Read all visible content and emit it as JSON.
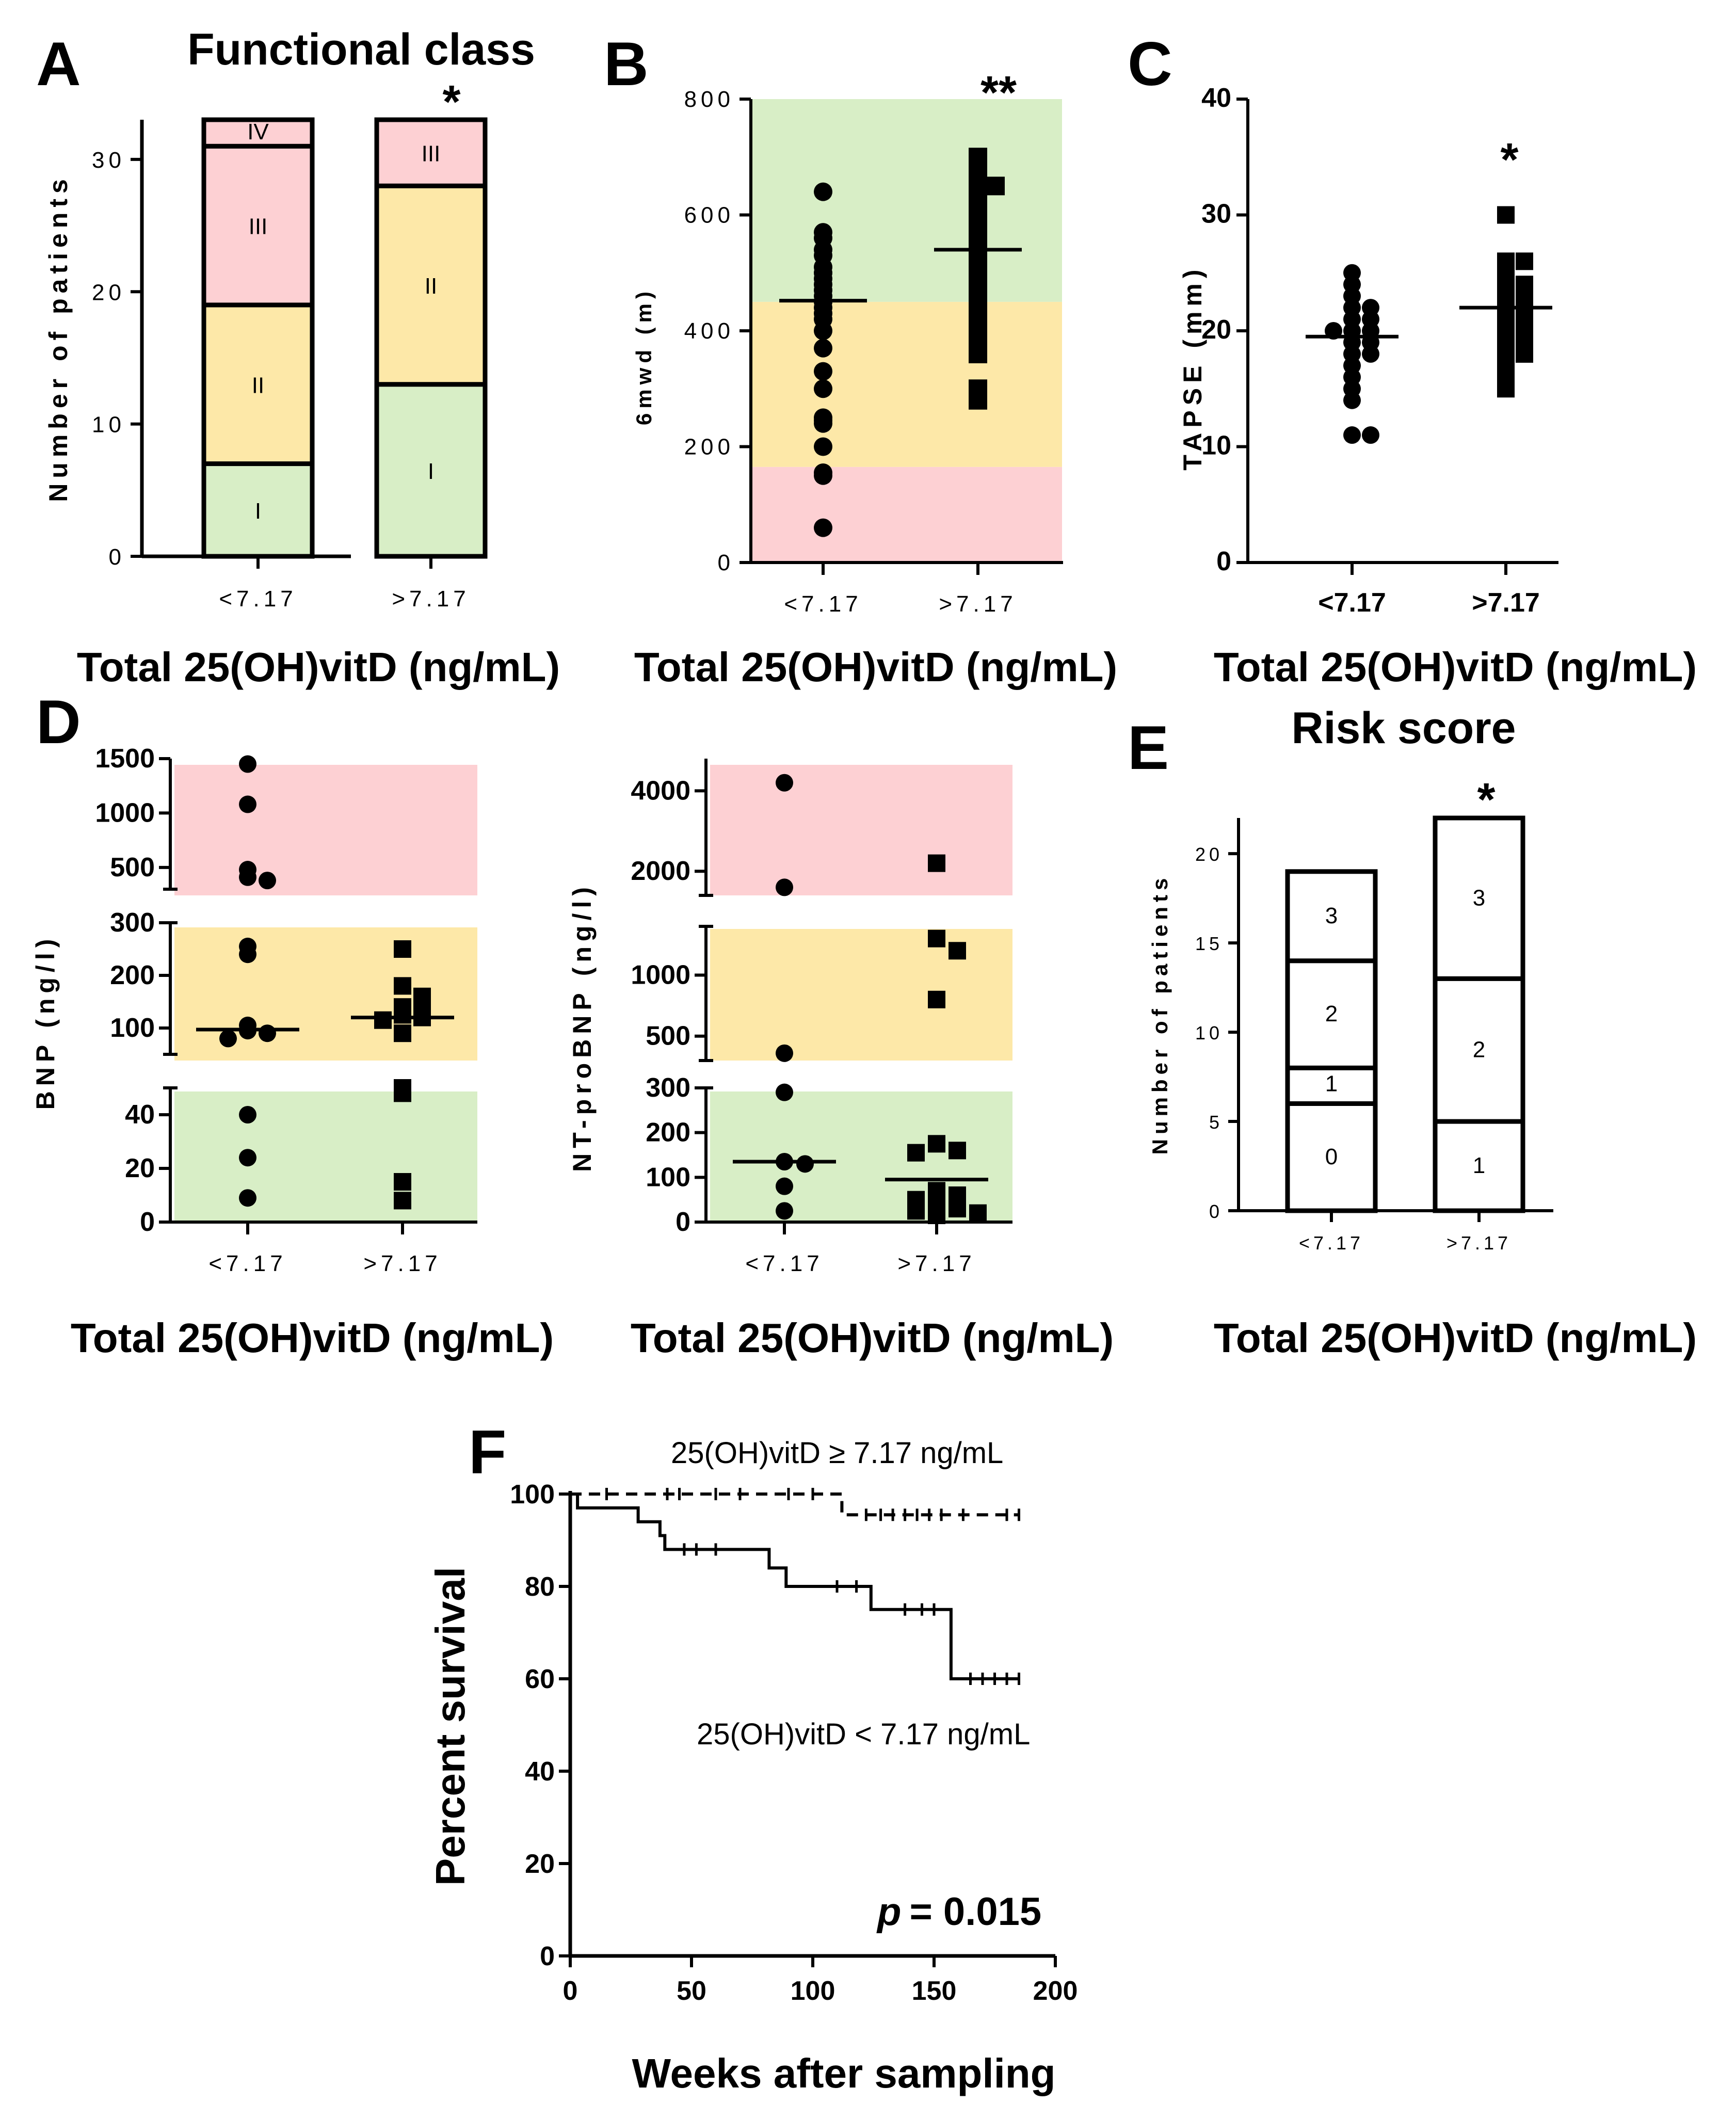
{
  "colors": {
    "red": "#fdd0d3",
    "yellow": "#fde8a8",
    "green": "#d8eec6",
    "ink": "#000000",
    "white": "#ffffff"
  },
  "captions": {
    "x_group": "Total 25(OH)vitD (ng/mL)",
    "weeks": "Weeks after sampling"
  },
  "chart_data": [
    {
      "id": "A",
      "panel_label": "A",
      "type": "stacked-bar",
      "title": "Functional class",
      "ylabel": "Number of patients",
      "ylim": [
        0,
        33
      ],
      "yticks": [
        0,
        10,
        20,
        30
      ],
      "categories": [
        "<7.17",
        ">7.17"
      ],
      "bars": [
        {
          "segments": [
            {
              "label": "I",
              "value": 7
            },
            {
              "label": "II",
              "value": 12
            },
            {
              "label": "III",
              "value": 12
            },
            {
              "label": "IV",
              "value": 2
            }
          ]
        },
        {
          "segments": [
            {
              "label": "I",
              "value": 13
            },
            {
              "label": "II",
              "value": 15
            },
            {
              "label": "III",
              "value": 5
            }
          ]
        }
      ],
      "significance": "*"
    },
    {
      "id": "B",
      "panel_label": "B",
      "type": "scatter",
      "ylabel": "6mwd (m)",
      "ylim": [
        0,
        800
      ],
      "yticks": [
        0,
        200,
        400,
        600,
        800
      ],
      "categories": [
        "<7.17",
        ">7.17"
      ],
      "bands": [
        {
          "from": 0,
          "to": 165,
          "color": "red"
        },
        {
          "from": 165,
          "to": 450,
          "color": "yellow"
        },
        {
          "from": 450,
          "to": 800,
          "color": "green"
        }
      ],
      "groups": [
        {
          "marker": "circle",
          "mean": 452,
          "values": [
            640,
            570,
            560,
            540,
            530,
            510,
            500,
            490,
            480,
            470,
            460,
            450,
            440,
            430,
            420,
            400,
            370,
            330,
            300,
            250,
            245,
            240,
            200,
            155,
            150,
            60
          ]
        },
        {
          "marker": "square",
          "mean": 540,
          "values": [
            700,
            680,
            650,
            650,
            630,
            600,
            590,
            580,
            560,
            550,
            540,
            530,
            510,
            490,
            480,
            460,
            450,
            430,
            420,
            390,
            370,
            360,
            300,
            290,
            280
          ]
        }
      ],
      "significance": "**"
    },
    {
      "id": "C",
      "panel_label": "C",
      "type": "scatter",
      "ylabel": "TAPSE (mm)",
      "ylim": [
        0,
        40
      ],
      "yticks": [
        0,
        10,
        20,
        30,
        40
      ],
      "categories": [
        "<7.17",
        ">7.17"
      ],
      "groups": [
        {
          "marker": "circle",
          "mean": 19.5,
          "values": [
            25,
            24,
            23,
            22,
            22,
            21,
            21,
            20,
            20,
            20,
            19,
            19,
            18,
            18,
            17,
            16,
            15,
            14,
            11,
            11
          ]
        },
        {
          "marker": "square",
          "mean": 22,
          "values": [
            30,
            26,
            26,
            25,
            24,
            24,
            23,
            23,
            22,
            22,
            21,
            21,
            20,
            20,
            19,
            19,
            18,
            18,
            17,
            16,
            15
          ]
        }
      ],
      "significance": "*"
    },
    {
      "id": "D1",
      "panel_label": "D",
      "type": "broken-axis-scatter",
      "ylabel": "BNP (ng/l)",
      "categories": [
        "<7.17",
        ">7.17"
      ],
      "segments": [
        {
          "range": [
            0,
            50
          ],
          "ticks": [
            0,
            20,
            40
          ],
          "band": "green"
        },
        {
          "range": [
            50,
            300
          ],
          "ticks": [
            100,
            200,
            300
          ],
          "band": "yellow"
        },
        {
          "range": [
            300,
            1500
          ],
          "ticks": [
            500,
            1000,
            1500
          ],
          "band": "red"
        }
      ],
      "groups": [
        {
          "marker": "circle",
          "mean": 97,
          "values": [
            1450,
            1080,
            480,
            410,
            380,
            255,
            240,
            105,
            95,
            90,
            80,
            40,
            24,
            9
          ]
        },
        {
          "marker": "square",
          "mean": 120,
          "values": [
            250,
            180,
            160,
            140,
            130,
            125,
            120,
            115,
            90,
            50,
            48,
            15,
            8
          ]
        }
      ]
    },
    {
      "id": "D2",
      "panel_label": "",
      "type": "broken-axis-scatter",
      "ylabel": "NT-proBNP (ng/l)",
      "categories": [
        "<7.17",
        ">7.17"
      ],
      "segments": [
        {
          "range": [
            0,
            300
          ],
          "ticks": [
            0,
            100,
            200,
            300
          ],
          "band": "green"
        },
        {
          "range": [
            300,
            1400
          ],
          "ticks": [
            500,
            1000
          ],
          "band": "yellow"
        },
        {
          "range": [
            1400,
            4800
          ],
          "ticks": [
            2000,
            4000
          ],
          "band": "red"
        }
      ],
      "groups": [
        {
          "marker": "circle",
          "mean": 135,
          "values": [
            4200,
            1600,
            360,
            290,
            135,
            130,
            80,
            25
          ]
        },
        {
          "marker": "square",
          "mean": 95,
          "values": [
            2200,
            1300,
            1200,
            800,
            175,
            160,
            155,
            70,
            60,
            50,
            40,
            30,
            25,
            20,
            15
          ]
        }
      ]
    },
    {
      "id": "E",
      "panel_label": "E",
      "type": "stacked-bar",
      "title": "Risk score",
      "ylabel": "Number of patients",
      "ylim": [
        0,
        22
      ],
      "yticks": [
        0,
        5,
        10,
        15,
        20
      ],
      "categories": [
        "<7.17",
        ">7.17"
      ],
      "bars": [
        {
          "segments": [
            {
              "label": "0",
              "value": 6
            },
            {
              "label": "1",
              "value": 2
            },
            {
              "label": "2",
              "value": 6
            },
            {
              "label": "3",
              "value": 5
            }
          ]
        },
        {
          "segments": [
            {
              "label": "1",
              "value": 5
            },
            {
              "label": "2",
              "value": 8
            },
            {
              "label": "3",
              "value": 9
            }
          ]
        }
      ],
      "significance": "*"
    },
    {
      "id": "F",
      "panel_label": "F",
      "type": "kaplan-meier",
      "ylabel": "Percent survival",
      "xlabel": "Weeks after sampling",
      "xlim": [
        0,
        200
      ],
      "ylim": [
        0,
        100
      ],
      "xticks": [
        0,
        50,
        100,
        150,
        200
      ],
      "yticks": [
        0,
        20,
        40,
        60,
        80,
        100
      ],
      "series": [
        {
          "name": "25(OH)vitD ≥ 7.17 ng/mL",
          "style": "dashed",
          "steps": [
            [
              0,
              100
            ],
            [
              112,
              100
            ],
            [
              112,
              95.5
            ],
            [
              185,
              95.5
            ]
          ],
          "censored": [
            [
              15,
              100
            ],
            [
              40,
              100
            ],
            [
              45,
              100
            ],
            [
              60,
              100
            ],
            [
              70,
              100
            ],
            [
              90,
              100
            ],
            [
              100,
              100
            ],
            [
              122,
              95.5
            ],
            [
              128,
              95.5
            ],
            [
              133,
              95.5
            ],
            [
              138,
              95.5
            ],
            [
              143,
              95.5
            ],
            [
              148,
              95.5
            ],
            [
              153,
              95.5
            ],
            [
              162,
              95.5
            ],
            [
              180,
              95.5
            ],
            [
              185,
              95.5
            ]
          ]
        },
        {
          "name": "25(OH)vitD < 7.17 ng/mL",
          "style": "solid",
          "steps": [
            [
              0,
              100
            ],
            [
              3,
              100
            ],
            [
              3,
              97
            ],
            [
              28,
              97
            ],
            [
              28,
              94
            ],
            [
              37,
              94
            ],
            [
              37,
              91
            ],
            [
              39,
              91
            ],
            [
              39,
              88
            ],
            [
              82,
              88
            ],
            [
              82,
              84
            ],
            [
              89,
              84
            ],
            [
              89,
              80
            ],
            [
              124,
              80
            ],
            [
              124,
              75
            ],
            [
              157,
              75
            ],
            [
              157,
              60
            ],
            [
              185,
              60
            ]
          ],
          "censored": [
            [
              47,
              88
            ],
            [
              52,
              88
            ],
            [
              60,
              88
            ],
            [
              110,
              80
            ],
            [
              118,
              80
            ],
            [
              138,
              75
            ],
            [
              145,
              75
            ],
            [
              150,
              75
            ],
            [
              165,
              60
            ],
            [
              170,
              60
            ],
            [
              175,
              60
            ],
            [
              180,
              60
            ],
            [
              185,
              60
            ]
          ]
        }
      ],
      "p_prefix": "p",
      "p_value": "= 0.015"
    }
  ]
}
